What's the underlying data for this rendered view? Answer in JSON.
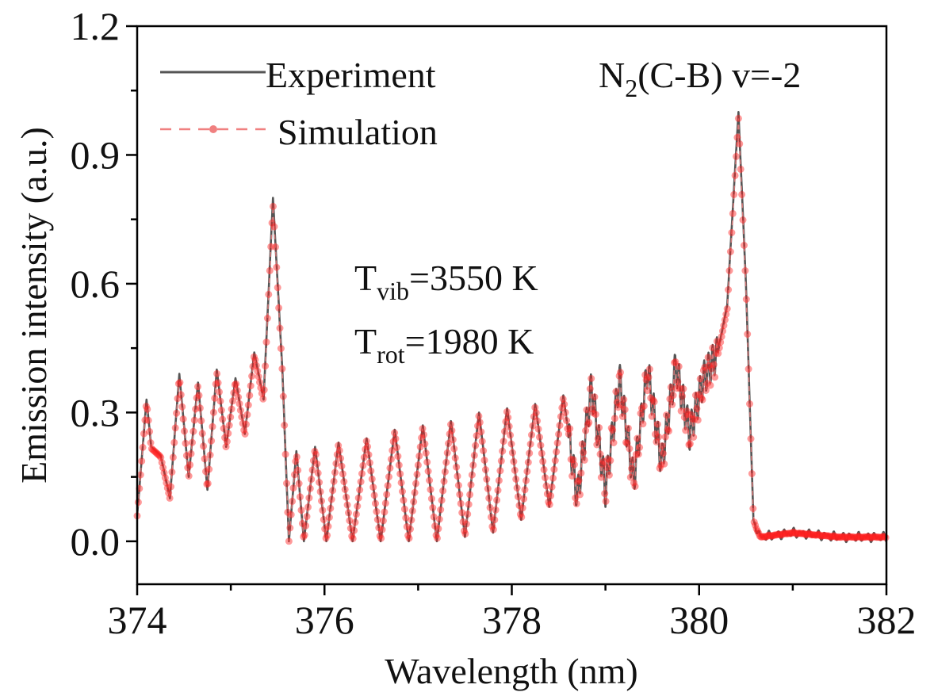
{
  "chart_data": {
    "type": "line",
    "title": "",
    "xlabel": "Wavelength (nm)",
    "ylabel": "Emission intensity (a.u.)",
    "xlim": [
      374,
      382
    ],
    "ylim": [
      -0.1,
      1.2
    ],
    "xticks": [
      374,
      376,
      378,
      380,
      382
    ],
    "xtick_labels": [
      "374",
      "376",
      "378",
      "380",
      "382"
    ],
    "xminor": [
      375,
      377,
      379,
      381
    ],
    "yticks": [
      0.0,
      0.3,
      0.6,
      0.9,
      1.2
    ],
    "ytick_labels": [
      "0.0",
      "0.3",
      "0.6",
      "0.9",
      "1.2"
    ],
    "yminor": [
      -0.15,
      0.15,
      0.45,
      0.75,
      1.05
    ],
    "grid": false,
    "legend_position": "top-left",
    "series": [
      {
        "name": "Experiment",
        "style": "solid line",
        "color": "#555555",
        "features": {
          "band_head_1": {
            "x": 375.45,
            "y": 0.8
          },
          "band_head_2": {
            "x": 380.42,
            "y": 1.0
          },
          "baseline_after_380_6": 0.01,
          "x": [
            374.0,
            374.1,
            374.15,
            374.25,
            374.35,
            374.45,
            374.55,
            374.65,
            374.75,
            374.85,
            374.95,
            375.05,
            375.15,
            375.25,
            375.35,
            375.45,
            375.55,
            375.62,
            375.7,
            375.78,
            375.9,
            376.02,
            376.15,
            376.3,
            376.45,
            376.6,
            376.75,
            376.9,
            377.05,
            377.2,
            377.35,
            377.5,
            377.65,
            377.8,
            377.95,
            378.1,
            378.25,
            378.4,
            378.55,
            378.7,
            378.85,
            379.0,
            379.15,
            379.3,
            379.45,
            379.6,
            379.75,
            379.9,
            380.05,
            380.2,
            380.3,
            380.42,
            380.5,
            380.58,
            380.65,
            381.0,
            381.5,
            382.0
          ],
          "y": [
            0.06,
            0.33,
            0.22,
            0.2,
            0.1,
            0.39,
            0.15,
            0.37,
            0.12,
            0.4,
            0.22,
            0.38,
            0.25,
            0.44,
            0.33,
            0.8,
            0.4,
            0.0,
            0.21,
            0.0,
            0.22,
            0.0,
            0.23,
            0.0,
            0.24,
            0.0,
            0.26,
            0.0,
            0.27,
            0.0,
            0.28,
            0.01,
            0.3,
            0.02,
            0.31,
            0.05,
            0.32,
            0.08,
            0.34,
            0.1,
            0.36,
            0.12,
            0.38,
            0.14,
            0.4,
            0.18,
            0.41,
            0.25,
            0.38,
            0.44,
            0.55,
            1.0,
            0.6,
            0.05,
            0.01,
            0.02,
            0.01,
            0.01
          ]
        }
      },
      {
        "name": "Simulation",
        "style": "dashed line with circle markers",
        "color": "#f08080",
        "marker_color": "#ff2020",
        "features": {
          "band_head_1": {
            "x": 375.45,
            "y": 0.79
          },
          "band_head_2": {
            "x": 380.42,
            "y": 0.99
          },
          "baseline_after_380_6": 0.005
        }
      }
    ],
    "annotations": [
      {
        "text": "N",
        "sub": "2",
        "rest": "(C-B) v=-2"
      },
      {
        "text": "T",
        "sub": "vib",
        "rest": "=3550 K"
      },
      {
        "text": "T",
        "sub": "rot",
        "rest": "=1980 K"
      }
    ]
  }
}
